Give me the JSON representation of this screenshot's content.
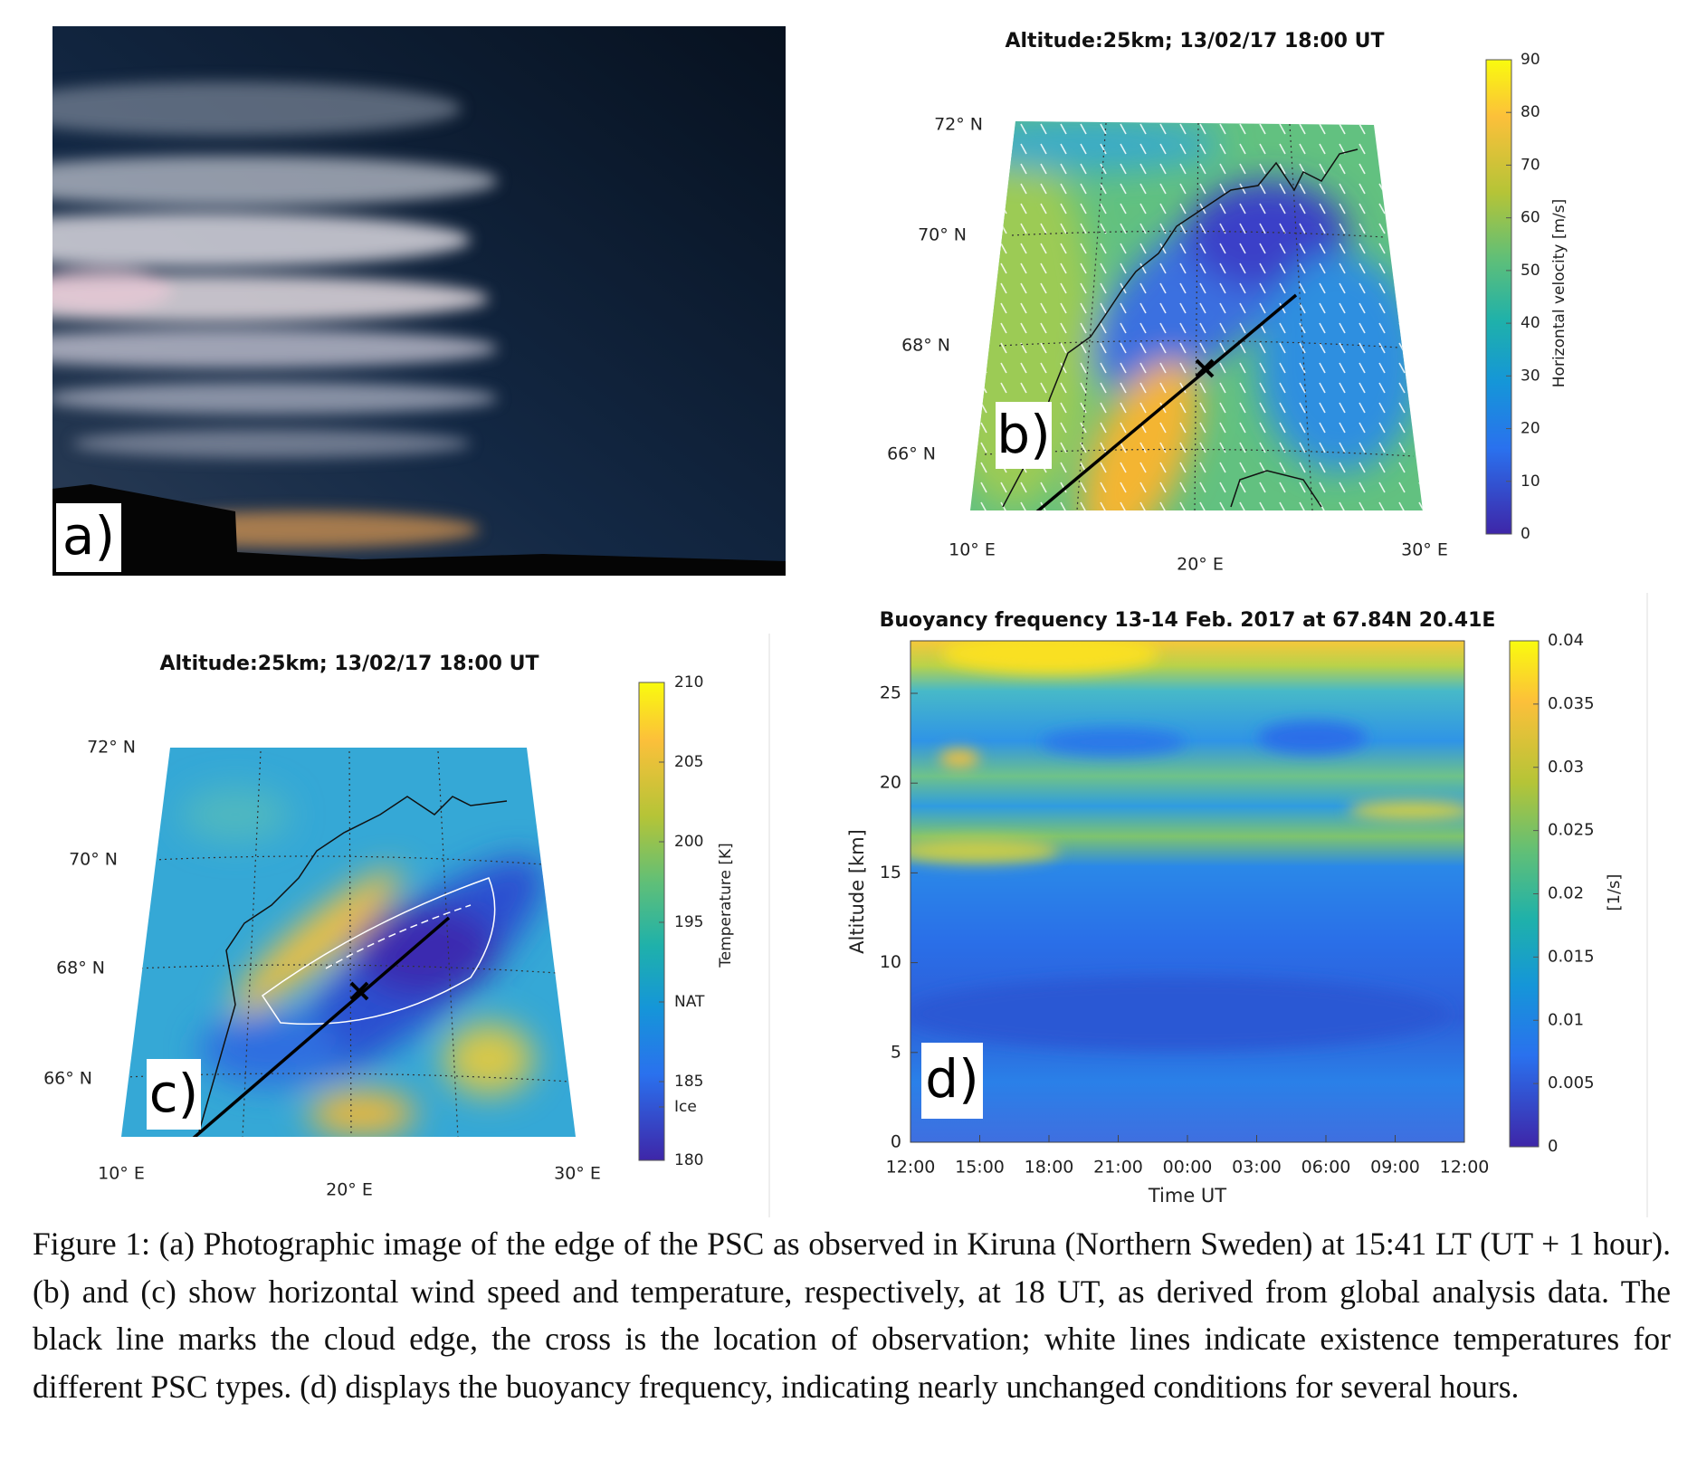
{
  "panels": {
    "a": {
      "label": "a)"
    },
    "b": {
      "title": "Altitude:25km; 13/02/17 18:00 UT",
      "label": "b)",
      "lat_labels": [
        "72° N",
        "70° N",
        "68° N",
        "66° N"
      ],
      "lon_labels": [
        "10° E",
        "20° E",
        "30° E"
      ],
      "colorbar": {
        "label": "Horizontal velocity [m/s]",
        "ticks": [
          "0",
          "10",
          "20",
          "30",
          "40",
          "50",
          "60",
          "70",
          "80",
          "90"
        ]
      }
    },
    "c": {
      "title": "Altitude:25km; 13/02/17 18:00 UT",
      "label": "c)",
      "lat_labels": [
        "72° N",
        "70° N",
        "68° N",
        "66° N"
      ],
      "lon_labels": [
        "10° E",
        "20° E",
        "30° E"
      ],
      "colorbar": {
        "label": "Temperature [K]",
        "ticks": [
          "210",
          "205",
          "200",
          "195",
          "NAT",
          "185",
          "Ice",
          "180"
        ]
      }
    },
    "d": {
      "title": "Buoyancy frequency 13-14 Feb. 2017 at 67.84N 20.41E",
      "label": "d)",
      "y_label": "Altitude [km]",
      "x_label": "Time UT",
      "y_ticks": [
        "25",
        "20",
        "15",
        "10",
        "5",
        "0"
      ],
      "x_ticks": [
        "12:00",
        "15:00",
        "18:00",
        "21:00",
        "00:00",
        "03:00",
        "06:00",
        "09:00",
        "12:00"
      ],
      "colorbar": {
        "label": "[1/s]",
        "ticks": [
          "0.04",
          "0.035",
          "0.03",
          "0.025",
          "0.02",
          "0.015",
          "0.01",
          "0.005",
          "0"
        ]
      }
    }
  },
  "caption": "Figure 1: (a) Photographic image of the edge of the PSC as observed in Kiruna (Northern Sweden) at 15:41 LT (UT + 1 hour). (b) and (c) show horizontal wind speed and temperature, respectively, at 18 UT, as derived from global analysis data. The black line marks the cloud edge, the cross is the location of observation; white lines indicate existence temperatures for different PSC types. (d) displays the buoyancy frequency, indicating nearly unchanged conditions for several hours."
}
